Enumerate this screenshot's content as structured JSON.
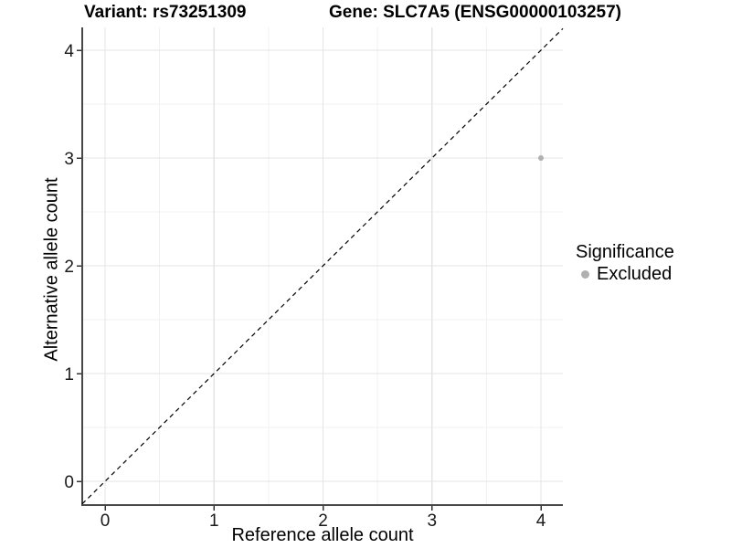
{
  "chart_data": {
    "type": "scatter",
    "titles": {
      "left": "Variant: rs73251309",
      "right": "Gene: SLC7A5 (ENSG00000103257)"
    },
    "xlabel": "Reference allele count",
    "ylabel": "Alternative allele count",
    "x_ticks": [
      0,
      1,
      2,
      3,
      4
    ],
    "y_ticks": [
      0,
      1,
      2,
      3,
      4
    ],
    "xlim": [
      -0.21,
      4.21
    ],
    "ylim": [
      -0.19,
      4.19
    ],
    "grid": {
      "major": true,
      "minor": true
    },
    "reference_line": {
      "type": "identity",
      "equation": "y = x",
      "style": "dashed",
      "color": "#000000"
    },
    "series": [
      {
        "name": "Excluded",
        "color": "#b0b0b0",
        "points": [
          {
            "x": 4,
            "y": 3
          }
        ]
      }
    ],
    "legend": {
      "title": "Significance",
      "position": "right",
      "items": [
        {
          "label": "Excluded",
          "color": "#b0b0b0"
        }
      ]
    }
  },
  "colors": {
    "background": "#ffffff",
    "grid_major": "#e4e4e4",
    "grid_minor": "#f1f1f1",
    "axis_line": "#474747",
    "tick_mark": "#333333",
    "tick_label": "#1a1a1a",
    "point": "#b0b0b0"
  }
}
